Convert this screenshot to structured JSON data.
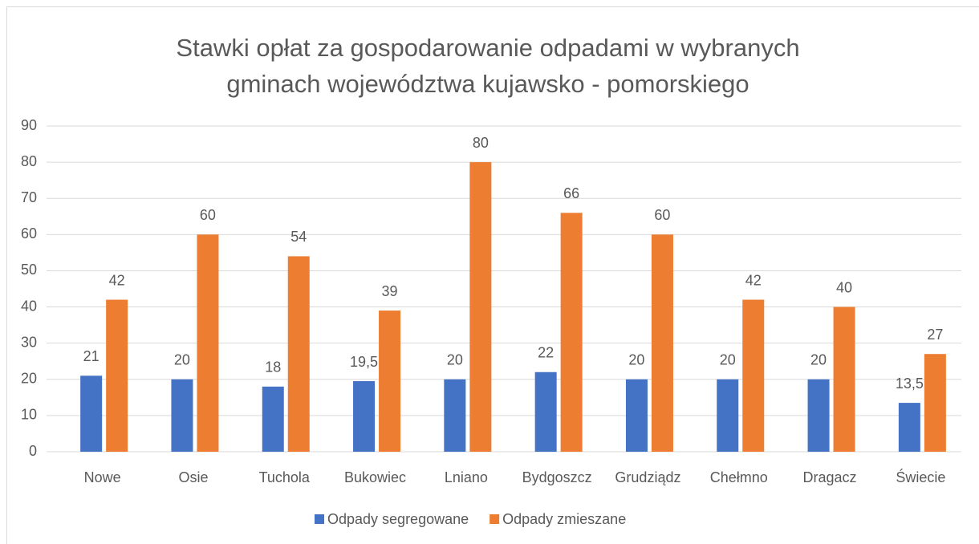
{
  "chart_data": {
    "type": "bar",
    "title": [
      "Stawki opłat za gospodarowanie odpadami w wybranych",
      "gminach województwa kujawsko - pomorskiego"
    ],
    "categories": [
      "Nowe",
      "Osie",
      "Tuchola",
      "Bukowiec",
      "Lniano",
      "Bydgoszcz",
      "Grudziądz",
      "Chełmno",
      "Dragacz",
      "Świecie"
    ],
    "series": [
      {
        "name": "Odpady segregowane",
        "color": "#4472c4",
        "values": [
          21,
          20,
          18,
          19.5,
          20,
          22,
          20,
          20,
          20,
          13.5
        ],
        "value_labels": [
          "21",
          "20",
          "18",
          "19,5",
          "20",
          "22",
          "20",
          "20",
          "20",
          "13,5"
        ]
      },
      {
        "name": "Odpady zmieszane",
        "color": "#ed7d31",
        "values": [
          42,
          60,
          54,
          39,
          80,
          66,
          60,
          42,
          40,
          27
        ]
      }
    ],
    "ylim": [
      0,
      90
    ],
    "yticks": [
      0,
      10,
      20,
      30,
      40,
      50,
      60,
      70,
      80,
      90
    ],
    "grid": true,
    "legend": "bottom"
  }
}
